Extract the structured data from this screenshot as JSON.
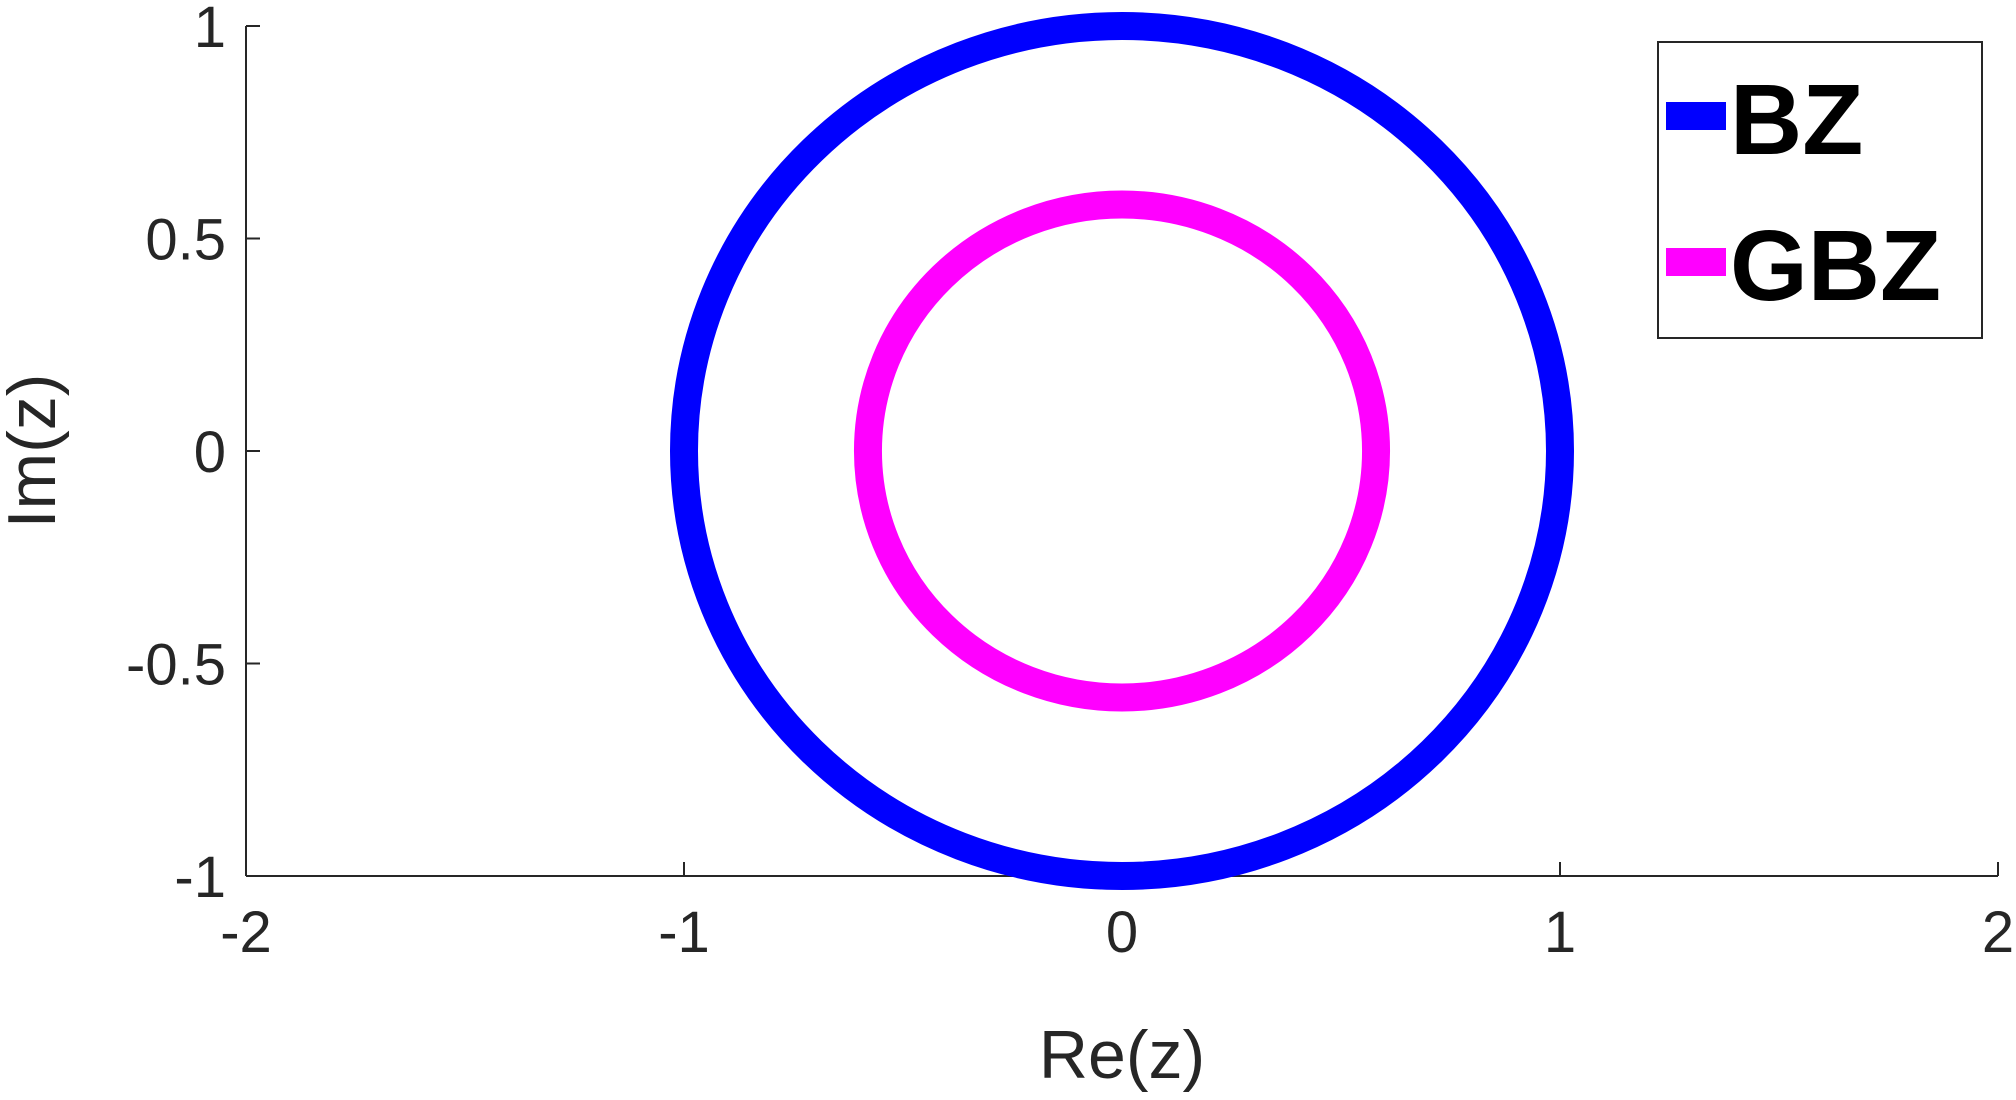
{
  "chart_data": {
    "type": "line",
    "title": "",
    "xlabel": "Re(z)",
    "ylabel": "Im(z)",
    "xlim": [
      -2,
      2
    ],
    "ylim": [
      -1,
      1
    ],
    "xticks": [
      -2,
      -1,
      0,
      1,
      2
    ],
    "yticks": [
      -1,
      -0.5,
      0,
      0.5,
      1
    ],
    "xtick_labels": [
      "-2",
      "-1",
      "0",
      "1",
      "2"
    ],
    "ytick_labels": [
      "-1",
      "-0.5",
      "0",
      "0.5",
      "1"
    ],
    "grid": false,
    "legend_position": "top-right",
    "series": [
      {
        "name": "BZ",
        "shape": "circle",
        "center": [
          0,
          0
        ],
        "radius": 1.0,
        "color": "#0000ff"
      },
      {
        "name": "GBZ",
        "shape": "circle",
        "center": [
          0,
          0
        ],
        "radius": 0.58,
        "color": "#ff00ff"
      }
    ]
  }
}
